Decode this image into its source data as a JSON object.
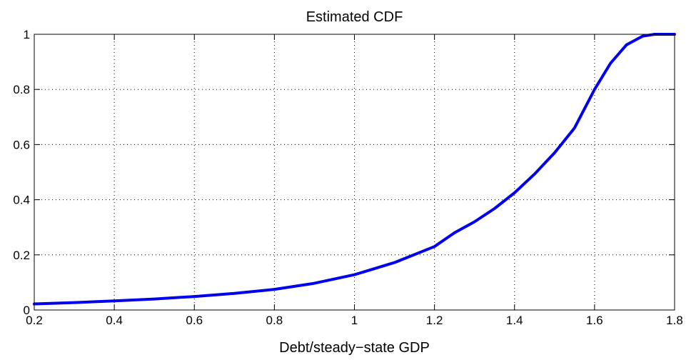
{
  "chart_data": {
    "type": "line",
    "title": "Estimated CDF",
    "xlabel": "Debt/steady−state GDP",
    "ylabel": "",
    "xlim": [
      0.2,
      1.8
    ],
    "ylim": [
      0,
      1
    ],
    "xticks": [
      0.2,
      0.4,
      0.6,
      0.8,
      1.0,
      1.2,
      1.4,
      1.6,
      1.8
    ],
    "xtick_labels": [
      "0.2",
      "0.4",
      "0.6",
      "0.8",
      "1",
      "1.2",
      "1.4",
      "1.6",
      "1.8"
    ],
    "yticks": [
      0,
      0.2,
      0.4,
      0.6,
      0.8,
      1
    ],
    "ytick_labels": [
      "0",
      "0.2",
      "0.4",
      "0.6",
      "0.8",
      "1"
    ],
    "grid": true,
    "legend": "none",
    "series": [
      {
        "color": "#0000ee",
        "x": [
          0.2,
          0.3,
          0.4,
          0.5,
          0.6,
          0.7,
          0.8,
          0.9,
          1.0,
          1.1,
          1.2,
          1.25,
          1.3,
          1.35,
          1.4,
          1.45,
          1.5,
          1.55,
          1.6,
          1.64,
          1.68,
          1.72,
          1.75,
          1.8
        ],
        "y": [
          0.022,
          0.027,
          0.033,
          0.04,
          0.049,
          0.06,
          0.075,
          0.097,
          0.128,
          0.172,
          0.23,
          0.28,
          0.32,
          0.368,
          0.425,
          0.493,
          0.57,
          0.66,
          0.8,
          0.895,
          0.962,
          0.993,
          1.0,
          1.0
        ]
      }
    ]
  }
}
